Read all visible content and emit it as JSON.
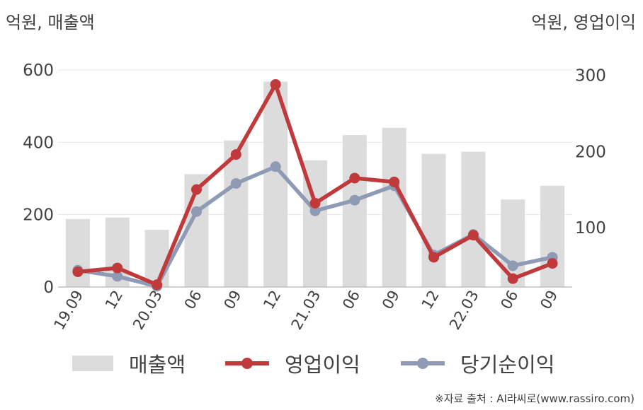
{
  "unit_left": "억원, 매출액",
  "unit_right": "억원, 영업이익",
  "source": "※자료 출처 : AI라씨로(www.rassiro.com)",
  "colors": {
    "bar": "#dcdcdc",
    "operating": "#c0393b",
    "net": "#8f9ab5",
    "grid": "#e6e6e6",
    "axis": "#bfbfbf"
  },
  "chart_data": {
    "type": "bar+line",
    "categories": [
      "19.09",
      "12",
      "20.03",
      "06",
      "09",
      "12",
      "21.03",
      "06",
      "09",
      "12",
      "22.03",
      "06",
      "09"
    ],
    "y_left": {
      "ticks": [
        0,
        200,
        400,
        600
      ],
      "lim": [
        0,
        600
      ]
    },
    "y_right": {
      "ticks": [
        100,
        200,
        300
      ],
      "lim": [
        22,
        307
      ]
    },
    "series": [
      {
        "name": "매출액",
        "kind": "bar",
        "axis": "left",
        "values": [
          188,
          192,
          158,
          312,
          405,
          568,
          350,
          420,
          440,
          368,
          374,
          242,
          280
        ]
      },
      {
        "name": "영업이익",
        "kind": "line",
        "axis": "right",
        "values": [
          42,
          47,
          25,
          150,
          196,
          288,
          132,
          165,
          160,
          61,
          90,
          33,
          53
        ]
      },
      {
        "name": "당기순이익",
        "kind": "line",
        "axis": "right",
        "values": [
          44,
          36,
          23,
          121,
          158,
          180,
          122,
          136,
          155,
          64,
          91,
          50,
          61
        ]
      }
    ],
    "grid": true,
    "legend": "bottom"
  }
}
